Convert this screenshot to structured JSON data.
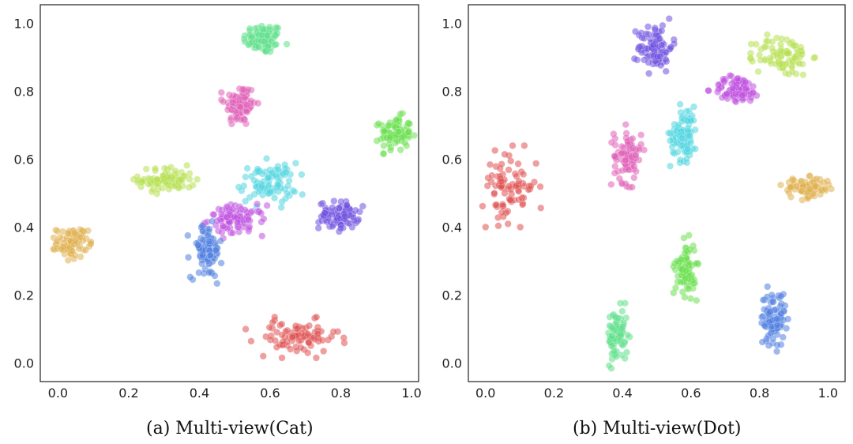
{
  "captions": [
    "(a)  Multi-view(Cat)",
    "(b)  Multi-view(Dot)"
  ],
  "chart_data": [
    {
      "type": "scatter",
      "title": "",
      "xlabel": "",
      "ylabel": "",
      "xlim": [
        -0.05,
        1.02
      ],
      "ylim": [
        -0.055,
        1.055
      ],
      "xticks": [
        "0.0",
        "0.2",
        "0.4",
        "0.6",
        "0.8",
        "1.0"
      ],
      "yticks": [
        "0.0",
        "0.2",
        "0.4",
        "0.6",
        "0.8",
        "1.0"
      ],
      "grid": false,
      "legend": "none",
      "clusters": [
        {
          "color": "#5fe08a",
          "center": [
            0.58,
            0.955
          ],
          "spread": [
            0.028,
            0.022
          ]
        },
        {
          "color": "#e060b8",
          "center": [
            0.515,
            0.76
          ],
          "spread": [
            0.022,
            0.032
          ]
        },
        {
          "color": "#6ce050",
          "center": [
            0.955,
            0.675
          ],
          "spread": [
            0.022,
            0.025
          ]
        },
        {
          "color": "#b6e050",
          "center": [
            0.31,
            0.54
          ],
          "spread": [
            0.04,
            0.018
          ]
        },
        {
          "color": "#50d6e0",
          "center": [
            0.595,
            0.53
          ],
          "spread": [
            0.04,
            0.03
          ]
        },
        {
          "color": "#c050e0",
          "center": [
            0.505,
            0.42
          ],
          "spread": [
            0.04,
            0.022
          ]
        },
        {
          "color": "#7050e0",
          "center": [
            0.795,
            0.435
          ],
          "spread": [
            0.028,
            0.02
          ]
        },
        {
          "color": "#e0b050",
          "center": [
            0.04,
            0.355
          ],
          "spread": [
            0.022,
            0.022
          ]
        },
        {
          "color": "#5080e0",
          "center": [
            0.42,
            0.33
          ],
          "spread": [
            0.022,
            0.04
          ]
        },
        {
          "color": "#e05050",
          "center": [
            0.675,
            0.075
          ],
          "spread": [
            0.06,
            0.025
          ]
        }
      ]
    },
    {
      "type": "scatter",
      "title": "",
      "xlabel": "",
      "ylabel": "",
      "xlim": [
        -0.05,
        1.05
      ],
      "ylim": [
        -0.055,
        1.055
      ],
      "xticks": [
        "0.0",
        "0.2",
        "0.4",
        "0.6",
        "0.8",
        "1.0"
      ],
      "yticks": [
        "0.0",
        "0.2",
        "0.4",
        "0.6",
        "0.8",
        "1.0"
      ],
      "grid": false,
      "legend": "none",
      "clusters": [
        {
          "color": "#7050e0",
          "center": [
            0.495,
            0.93
          ],
          "spread": [
            0.025,
            0.035
          ]
        },
        {
          "color": "#b6e050",
          "center": [
            0.87,
            0.905
          ],
          "spread": [
            0.04,
            0.03
          ]
        },
        {
          "color": "#c050e0",
          "center": [
            0.735,
            0.805
          ],
          "spread": [
            0.035,
            0.02
          ]
        },
        {
          "color": "#50d6e0",
          "center": [
            0.58,
            0.675
          ],
          "spread": [
            0.02,
            0.04
          ]
        },
        {
          "color": "#e060b8",
          "center": [
            0.415,
            0.61
          ],
          "spread": [
            0.02,
            0.04
          ]
        },
        {
          "color": "#e05050",
          "center": [
            0.07,
            0.52
          ],
          "spread": [
            0.04,
            0.05
          ]
        },
        {
          "color": "#e0b050",
          "center": [
            0.94,
            0.515
          ],
          "spread": [
            0.035,
            0.015
          ]
        },
        {
          "color": "#6ce050",
          "center": [
            0.585,
            0.28
          ],
          "spread": [
            0.015,
            0.04
          ]
        },
        {
          "color": "#5fe08a",
          "center": [
            0.385,
            0.08
          ],
          "spread": [
            0.015,
            0.04
          ]
        },
        {
          "color": "#5080e0",
          "center": [
            0.84,
            0.13
          ],
          "spread": [
            0.018,
            0.04
          ]
        }
      ]
    }
  ]
}
